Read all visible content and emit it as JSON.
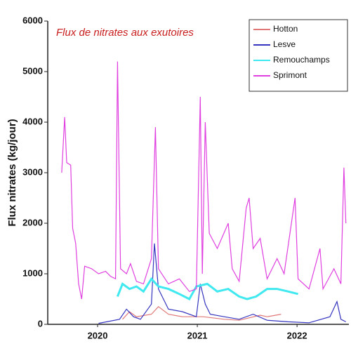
{
  "chart_data": {
    "type": "line",
    "title": "Flux de nitrates aux exutoires",
    "y_label": "Flux nitrates (kg/jour)",
    "xlim": [
      2020,
      2023.02
    ],
    "xticks": [
      {
        "value": 2020.5,
        "label": "2020"
      },
      {
        "value": 2021.5,
        "label": "2021"
      },
      {
        "value": 2022.5,
        "label": "2022"
      }
    ],
    "ylim": [
      0,
      6000
    ],
    "yticks": [
      0,
      1000,
      2000,
      3000,
      4000,
      5000,
      6000
    ],
    "legend": "top-right",
    "series": [
      {
        "name": "Hotton",
        "color": "#e07878",
        "x": [
          2020.75,
          2020.82,
          2020.89,
          2021.04,
          2021.11,
          2021.21,
          2021.35,
          2021.56,
          2021.77,
          2021.92,
          2022.13,
          2022.2,
          2022.34
        ],
        "values": [
          100,
          250,
          150,
          200,
          350,
          200,
          150,
          150,
          100,
          80,
          180,
          150,
          200
        ]
      },
      {
        "name": "Lesve",
        "color": "#3434c0",
        "x": [
          2020.51,
          2020.72,
          2020.79,
          2020.86,
          2020.93,
          2021.04,
          2021.07,
          2021.11,
          2021.21,
          2021.35,
          2021.49,
          2021.53,
          2021.58,
          2021.63,
          2021.77,
          2021.92,
          2022.06,
          2022.2,
          2022.41,
          2022.62,
          2022.83,
          2022.9,
          2022.94,
          2022.99
        ],
        "values": [
          20,
          100,
          300,
          150,
          100,
          400,
          1600,
          700,
          300,
          250,
          150,
          800,
          400,
          200,
          150,
          100,
          200,
          80,
          50,
          30,
          150,
          450,
          100,
          50
        ]
      },
      {
        "name": "Remouchamps",
        "color": "#40e8f0",
        "x": [
          2020.7,
          2020.75,
          2020.82,
          2020.89,
          2020.96,
          2021.04,
          2021.11,
          2021.21,
          2021.32,
          2021.42,
          2021.49,
          2021.6,
          2021.7,
          2021.81,
          2021.92,
          2022.0,
          2022.09,
          2022.2,
          2022.3,
          2022.41,
          2022.51
        ],
        "values": [
          550,
          800,
          700,
          750,
          650,
          900,
          750,
          700,
          600,
          500,
          750,
          800,
          650,
          700,
          550,
          500,
          550,
          700,
          700,
          650,
          600
        ]
      },
      {
        "name": "Sprimont",
        "color": "#e040e0",
        "x": [
          2020.14,
          2020.17,
          2020.19,
          2020.23,
          2020.25,
          2020.28,
          2020.31,
          2020.34,
          2020.37,
          2020.44,
          2020.51,
          2020.58,
          2020.63,
          2020.68,
          2020.7,
          2020.73,
          2020.79,
          2020.83,
          2020.89,
          2020.96,
          2021.04,
          2021.08,
          2021.11,
          2021.21,
          2021.32,
          2021.42,
          2021.49,
          2021.53,
          2021.55,
          2021.58,
          2021.62,
          2021.7,
          2021.81,
          2021.85,
          2021.92,
          2021.99,
          2022.02,
          2022.06,
          2022.13,
          2022.2,
          2022.3,
          2022.37,
          2022.48,
          2022.51,
          2022.62,
          2022.73,
          2022.76,
          2022.87,
          2022.94,
          2022.97,
          2022.99
        ],
        "values": [
          3000,
          4100,
          3200,
          3150,
          1900,
          1600,
          800,
          500,
          1150,
          1100,
          1000,
          1050,
          950,
          900,
          5200,
          1100,
          1000,
          1200,
          850,
          800,
          1300,
          3900,
          1100,
          800,
          900,
          650,
          700,
          4500,
          1000,
          4000,
          1800,
          1500,
          2000,
          1100,
          850,
          2300,
          2500,
          1500,
          1700,
          900,
          1300,
          1000,
          2500,
          900,
          700,
          1500,
          700,
          1100,
          800,
          3100,
          2000
        ]
      }
    ]
  }
}
